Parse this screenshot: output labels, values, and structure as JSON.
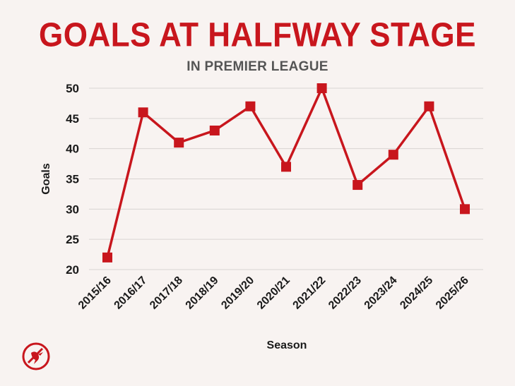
{
  "header": {
    "title": "GOALS AT HALFWAY STAGE",
    "subtitle": "IN PREMIER LEAGUE"
  },
  "brand": {
    "logo_icon": "liverbird-crest-icon"
  },
  "colors": {
    "background": "#f8f3f1",
    "accent": "#c8161d",
    "grid": "#d9d4d2",
    "text": "#1a1a1a"
  },
  "chart_data": {
    "type": "line",
    "title": "GOALS AT HALFWAY STAGE",
    "subtitle": "IN PREMIER LEAGUE",
    "xlabel": "Season",
    "ylabel": "Goals",
    "categories": [
      "2015/16",
      "2016/17",
      "2017/18",
      "2018/19",
      "2019/20",
      "2020/21",
      "2021/22",
      "2022/23",
      "2023/24",
      "2024/25",
      "2025/26"
    ],
    "series": [
      {
        "values": [
          22,
          46,
          41,
          43,
          47,
          37,
          50,
          34,
          39,
          47,
          30
        ]
      }
    ],
    "ylim": [
      20,
      50
    ],
    "yticks": [
      20,
      25,
      30,
      35,
      40,
      45,
      50
    ],
    "grid": true,
    "marker": "square",
    "legend": "none"
  }
}
